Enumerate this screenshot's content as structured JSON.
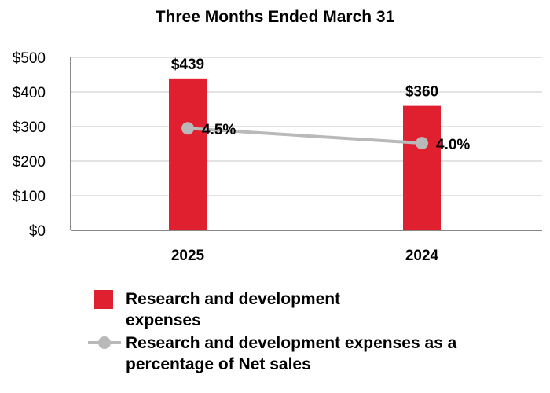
{
  "chart_data": {
    "type": "bar",
    "title": "Three Months Ended March 31",
    "categories": [
      "2025",
      "2024"
    ],
    "ylim": [
      0,
      500
    ],
    "yticks": [
      0,
      100,
      200,
      300,
      400,
      500
    ],
    "ytick_labels": [
      "$0",
      "$100",
      "$200",
      "$300",
      "$400",
      "$500"
    ],
    "grid": true,
    "series": [
      {
        "name": "Research and development expenses",
        "kind": "bar",
        "values": [
          439,
          360
        ],
        "data_labels": [
          "$439",
          "$360"
        ],
        "color": "#e0202e"
      },
      {
        "name": "Research and development expenses as a percentage of Net sales",
        "kind": "line",
        "values": [
          4.5,
          4.0
        ],
        "data_labels": [
          "4.5%",
          "4.0%"
        ],
        "color": "#b9b9b9"
      }
    ],
    "legend_position": "bottom-left"
  }
}
